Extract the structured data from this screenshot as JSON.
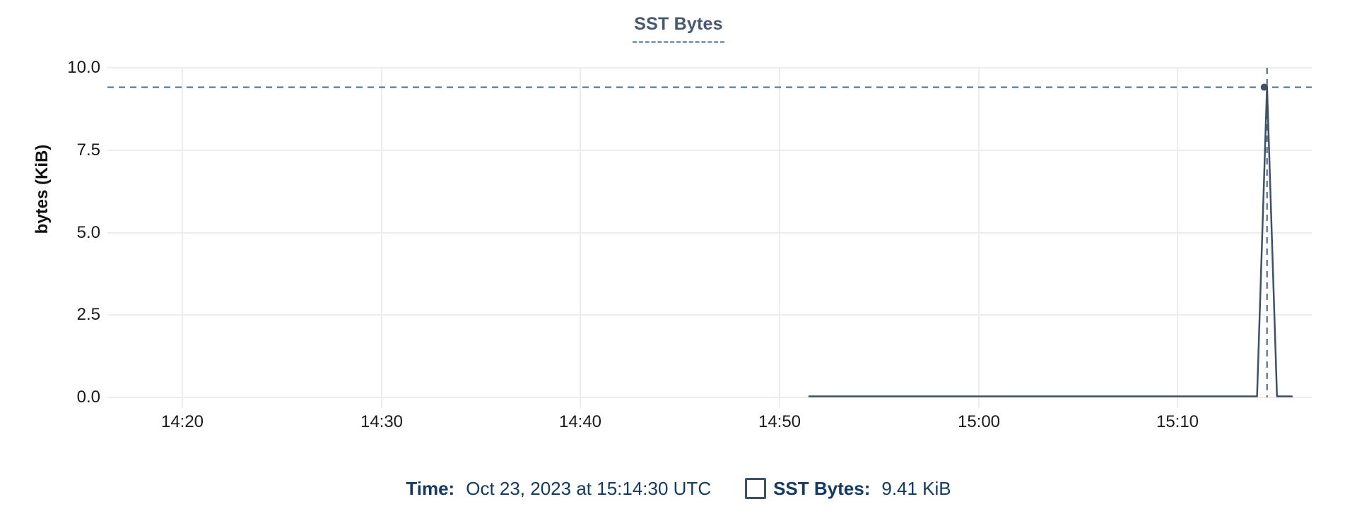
{
  "colors": {
    "line": "#3e5168",
    "crosshair": "#54708c",
    "grid": "#ececec",
    "axis_text": "#1a1a1a",
    "title": "#475872",
    "title_underline": "#8aa0b4",
    "legend_text": "#143a63"
  },
  "tooltip": {
    "time_label": "Time:",
    "time_value": "Oct 23, 2023 at 15:14:30 UTC",
    "series_swatch": "unchecked-square-outline",
    "series_label": "SST Bytes:",
    "series_value": "9.41 KiB"
  },
  "chart_data": {
    "type": "line",
    "title": "SST Bytes",
    "xlabel": "",
    "ylabel": "bytes (KiB)",
    "ylim": [
      0,
      10
    ],
    "y_unit": "KiB",
    "y_ticks": [
      "10.0",
      "7.5",
      "5.0",
      "2.5",
      "0.0"
    ],
    "y_tick_values": [
      10.0,
      7.5,
      5.0,
      2.5,
      0.0
    ],
    "x_ticks": [
      "14:20",
      "14:30",
      "14:40",
      "14:50",
      "15:00",
      "15:10"
    ],
    "x_minutes_per_tick": 10,
    "x_range": [
      "14:16:15",
      "15:16:40"
    ],
    "grid": true,
    "legend_position": "bottom-center",
    "series": [
      {
        "name": "SST Bytes",
        "unit": "KiB",
        "points": [
          {
            "time": "14:51:30",
            "value": 0
          },
          {
            "time": "15:14:00",
            "value": 0
          },
          {
            "time": "15:14:30",
            "value": 9.41
          },
          {
            "time": "15:15:00",
            "value": 0
          },
          {
            "time": "15:15:45",
            "value": 0
          }
        ],
        "note": "no data plotted before 14:51:30"
      }
    ],
    "highlight": {
      "time": "15:14:30",
      "value": 9.41,
      "date": "Oct 23, 2023",
      "timezone": "UTC",
      "crosshair": true
    }
  }
}
